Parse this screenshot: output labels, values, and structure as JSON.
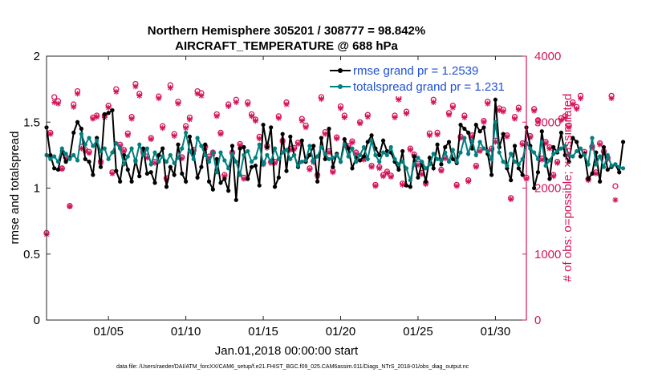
{
  "title_line1": "Northern Hemisphere 305201 / 308777 = 98.842%",
  "title_line2": "AIRCRAFT_TEMPERATURE @ 688 hPa",
  "footer": "data file: /Users/raeder/DAI/ATM_forcXX/CAM6_setup/f.e21.FHIST_BGC.f09_025.CAM6assim.011/Diags_NTrS_2018-01/obs_diag_output.nc",
  "colors": {
    "rmse": "#000000",
    "spread": "#00807f",
    "obs": "#d4145a",
    "legend_text": "#1f4fd6"
  },
  "chart_data": {
    "type": "line",
    "xlabel": "Jan.01,2018 00:00:00 start",
    "ylabel_left": "rmse and totalspread",
    "ylabel_right": "# of obs: o=possible; ×=assimilated",
    "xlim": [
      1,
      32
    ],
    "ylim_left": [
      0,
      2
    ],
    "ylim_right": [
      0,
      4000
    ],
    "xticks": [
      5,
      10,
      15,
      20,
      25,
      30
    ],
    "xtick_labels": [
      "01/05",
      "01/10",
      "01/15",
      "01/20",
      "01/25",
      "01/30"
    ],
    "yticks_left": [
      0,
      0.5,
      1,
      1.5,
      2
    ],
    "ytick_labels_left": [
      "0",
      "0.5",
      "1",
      "1.5",
      "2"
    ],
    "yticks_right": [
      0,
      1000,
      2000,
      3000,
      4000
    ],
    "ytick_labels_right": [
      "0",
      "1000",
      "2000",
      "3000",
      "4000"
    ],
    "grid": false,
    "legend_position": "top-right",
    "series": [
      {
        "name": "rmse grand pr = 1.2539",
        "axis": "left",
        "marker": "filled-circle",
        "x0": 1.0,
        "dx": 0.25,
        "values": [
          1.46,
          1.25,
          1.15,
          1.14,
          1.28,
          1.2,
          1.23,
          1.42,
          1.5,
          1.45,
          1.22,
          1.2,
          1.1,
          1.38,
          1.16,
          1.56,
          1.57,
          1.59,
          1.13,
          1.05,
          1.25,
          1.14,
          1.05,
          1.21,
          1.09,
          1.3,
          1.11,
          1.12,
          1.04,
          1.25,
          1.3,
          1.01,
          1.16,
          1.1,
          1.33,
          1.11,
          1.05,
          1.39,
          1.26,
          1.08,
          1.16,
          1.33,
          1.05,
          0.99,
          1.22,
          1.04,
          1.07,
          0.98,
          1.32,
          0.91,
          1.3,
          1.31,
          1.07,
          1.16,
          1.17,
          1.02,
          1.48,
          1.31,
          1.46,
          1.01,
          1.08,
          1.41,
          1.13,
          1.39,
          1.25,
          1.16,
          1.36,
          1.2,
          1.25,
          1.32,
          1.05,
          1.38,
          1.22,
          1.45,
          1.16,
          1.26,
          1.2,
          1.37,
          1.3,
          1.15,
          1.23,
          1.21,
          1.24,
          1.35,
          1.4,
          1.3,
          1.25,
          1.36,
          1.28,
          1.27,
          1.2,
          1.14,
          1.28,
          1.02,
          1.01,
          1.24,
          1.08,
          1.19,
          1.05,
          1.23,
          1.15,
          1.33,
          1.18,
          1.31,
          1.35,
          1.22,
          1.19,
          1.48,
          1.45,
          1.42,
          1.3,
          1.48,
          1.43,
          1.46,
          1.26,
          1.1,
          1.67,
          1.31,
          1.41,
          1.15,
          1.06,
          1.32,
          1.15,
          1.1,
          1.46,
          1.32,
          1.0,
          1.12,
          1.43,
          1.22,
          1.07,
          1.31,
          1.27,
          1.42,
          1.25,
          1.2,
          1.38,
          1.35,
          1.24,
          1.26,
          1.07,
          1.11,
          1.27,
          1.05,
          1.31,
          1.14,
          1.16,
          1.18,
          1.12,
          1.35
        ]
      },
      {
        "name": "totalspread grand pr = 1.231",
        "axis": "left",
        "marker": "filled-circle",
        "x0": 1.0,
        "dx": 0.25,
        "values": [
          1.25,
          1.22,
          1.24,
          1.2,
          1.3,
          1.26,
          1.22,
          1.25,
          1.21,
          1.41,
          1.33,
          1.38,
          1.32,
          1.36,
          1.28,
          1.3,
          1.22,
          1.27,
          1.34,
          1.3,
          1.18,
          1.24,
          1.3,
          1.2,
          1.33,
          1.25,
          1.3,
          1.18,
          1.27,
          1.2,
          1.24,
          1.2,
          1.25,
          1.19,
          1.23,
          1.3,
          1.42,
          1.28,
          1.22,
          1.38,
          1.32,
          1.25,
          1.2,
          1.27,
          1.12,
          1.27,
          1.21,
          1.15,
          1.26,
          1.2,
          1.1,
          1.25,
          1.28,
          1.2,
          1.23,
          1.33,
          1.18,
          1.25,
          1.2,
          1.3,
          1.22,
          1.27,
          1.29,
          1.22,
          1.25,
          1.17,
          1.2,
          1.21,
          1.32,
          1.2,
          1.24,
          1.31,
          1.26,
          1.22,
          1.23,
          1.25,
          1.2,
          1.33,
          1.24,
          1.3,
          1.2,
          1.25,
          1.31,
          1.22,
          1.36,
          1.25,
          1.2,
          1.27,
          1.25,
          1.31,
          1.22,
          1.18,
          1.2,
          1.15,
          1.06,
          1.18,
          1.23,
          1.2,
          1.15,
          1.18,
          1.26,
          1.22,
          1.21,
          1.27,
          1.2,
          1.29,
          1.2,
          1.27,
          1.38,
          1.26,
          1.36,
          1.25,
          1.35,
          1.3,
          1.28,
          1.22,
          1.5,
          1.27,
          1.2,
          1.17,
          1.26,
          1.2,
          1.18,
          1.22,
          1.34,
          1.3,
          1.27,
          1.22,
          1.35,
          1.17,
          1.21,
          1.26,
          1.28,
          1.3,
          1.32,
          1.25,
          1.24,
          1.28,
          1.3,
          1.25,
          1.18,
          1.38,
          1.18,
          1.24,
          1.16,
          1.25,
          1.17,
          1.18,
          1.16,
          1.15
        ]
      },
      {
        "name": "possible",
        "axis": "right",
        "marker": "open-circle",
        "x0": 1.0,
        "dx": 0.25,
        "values": [
          1320,
          2840,
          3380,
          3320,
          2300,
          2470,
          1730,
          3270,
          3470,
          2630,
          2580,
          2550,
          3070,
          3100,
          2400,
          3100,
          3250,
          2240,
          3500,
          2660,
          2580,
          2830,
          3080,
          3580,
          3430,
          2550,
          2480,
          2760,
          2400,
          3390,
          2940,
          2150,
          3560,
          2820,
          3310,
          2470,
          2940,
          3070,
          2580,
          3470,
          3440,
          2630,
          2480,
          2540,
          3120,
          2840,
          2200,
          3270,
          2540,
          3340,
          2670,
          2160,
          3300,
          3120,
          3040,
          2780,
          2380,
          2640,
          2400,
          2400,
          3090,
          2720,
          3300,
          2600,
          2610,
          2690,
          3050,
          2950,
          2300,
          2410,
          2200,
          3380,
          2850,
          2560,
          2260,
          2770,
          3240,
          3100,
          2640,
          2710,
          2540,
          3000,
          2450,
          3110,
          2340,
          2050,
          2320,
          2200,
          2250,
          2190,
          3100,
          3370,
          2070,
          3160,
          2600,
          2510,
          2370,
          2230,
          2080,
          2830,
          3340,
          2840,
          2280,
          2470,
          3140,
          3250,
          2050,
          2780,
          3100,
          2120,
          2800,
          2340,
          2580,
          3020,
          3310,
          2600,
          2720,
          3210,
          3190,
          2800,
          1850,
          3080,
          3220,
          2680,
          2160,
          2790,
          3200,
          3030,
          2450,
          2700,
          2620,
          2200,
          2400,
          3060,
          3090,
          2950,
          3300,
          3230,
          3400,
          2550,
          2140,
          2630,
          2240,
          2680,
          2560,
          2460,
          3400,
          2030
        ]
      },
      {
        "name": "assimilated",
        "axis": "right",
        "marker": "asterisk",
        "x0": 1.0,
        "dx": 0.25,
        "values": [
          1300,
          2820,
          3300,
          3280,
          2290,
          2450,
          1720,
          3230,
          3430,
          2600,
          2560,
          2530,
          3050,
          3080,
          2380,
          3070,
          3220,
          2220,
          3460,
          2640,
          2560,
          2800,
          3050,
          3540,
          3400,
          2520,
          2460,
          2740,
          2380,
          3360,
          2910,
          2130,
          3520,
          2790,
          3280,
          2450,
          2910,
          3040,
          2560,
          3430,
          3400,
          2610,
          2460,
          2520,
          3090,
          2820,
          2180,
          3240,
          2520,
          3300,
          2650,
          2140,
          3270,
          3090,
          3020,
          2750,
          2360,
          2610,
          2380,
          2380,
          3060,
          2700,
          3270,
          2580,
          2590,
          2670,
          3020,
          2920,
          2280,
          2390,
          2180,
          3350,
          2820,
          2540,
          2240,
          2750,
          3210,
          3070,
          2620,
          2690,
          2520,
          2980,
          2430,
          3080,
          2320,
          2030,
          2300,
          2180,
          2230,
          2170,
          3070,
          3340,
          2050,
          3130,
          2580,
          2490,
          2350,
          2210,
          2060,
          2800,
          3300,
          2810,
          2260,
          2450,
          3110,
          3220,
          2030,
          2760,
          3070,
          2100,
          2780,
          2320,
          2560,
          3000,
          3280,
          2580,
          2700,
          3180,
          3160,
          2780,
          1830,
          3050,
          3190,
          2660,
          2140,
          2770,
          3170,
          3000,
          2430,
          2680,
          2600,
          2180,
          2380,
          3030,
          3060,
          2920,
          3270,
          3200,
          3360,
          2530,
          2120,
          2610,
          2220,
          2660,
          2540,
          2440,
          3360,
          1820
        ]
      }
    ]
  }
}
